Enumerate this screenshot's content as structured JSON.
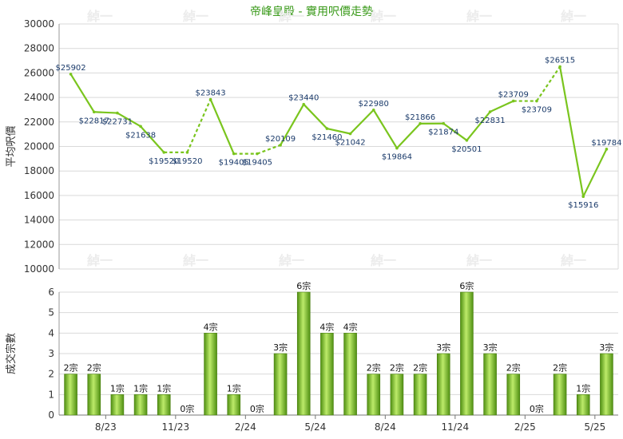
{
  "page": {
    "title": "帝峰皇殿 - 實用呎價走勢"
  },
  "colors": {
    "line": "#7ac51e",
    "bar_dark": "#4f8f12",
    "bar_light": "#bdeb6a",
    "label": "#1a3a6a",
    "watermark": "#ececec",
    "grid": "#d9d9d9"
  },
  "chart_data": [
    {
      "type": "line",
      "title": "帝峰皇殿 - 實用呎價走勢",
      "ylabel": "平均呎價",
      "ylim": [
        10000,
        30000
      ],
      "yticks": [
        10000,
        12000,
        14000,
        16000,
        18000,
        20000,
        22000,
        24000,
        26000,
        28000,
        30000
      ],
      "grid": true,
      "series": [
        {
          "values": [
            25902,
            22817,
            22731,
            21638,
            19520,
            19520,
            23843,
            19405,
            19405,
            20109,
            23440,
            21460,
            21042,
            22980,
            19864,
            21866,
            21874,
            20501,
            22831,
            23709,
            23709,
            26515,
            15916,
            19784
          ],
          "labels": [
            "$25902",
            "$22817",
            "$22731",
            "$21638",
            "$19520",
            "$19520",
            "$23843",
            "$19405",
            "$19405",
            "$20109",
            "$23440",
            "$21460",
            "$21042",
            "$22980",
            "$19864",
            "$21866",
            "$21874",
            "$20501",
            "$22831",
            "$23709",
            "$23709",
            "$26515",
            "$15916",
            "$19784"
          ],
          "interpolated": [
            false,
            false,
            false,
            false,
            false,
            true,
            false,
            false,
            true,
            false,
            false,
            false,
            false,
            false,
            false,
            false,
            false,
            false,
            false,
            false,
            true,
            false,
            false,
            false
          ]
        }
      ]
    },
    {
      "type": "bar",
      "ylabel": "成交宗數",
      "ylim": [
        0,
        6
      ],
      "yticks": [
        0,
        1,
        2,
        3,
        4,
        5,
        6
      ],
      "grid": true,
      "xticks": [
        {
          "index": 2,
          "label": "8/23"
        },
        {
          "index": 5,
          "label": "11/23"
        },
        {
          "index": 8,
          "label": "2/24"
        },
        {
          "index": 11,
          "label": "5/24"
        },
        {
          "index": 14,
          "label": "8/24"
        },
        {
          "index": 17,
          "label": "11/24"
        },
        {
          "index": 20,
          "label": "2/25"
        },
        {
          "index": 23,
          "label": "5/25"
        }
      ],
      "values": [
        2,
        2,
        1,
        1,
        1,
        0,
        4,
        1,
        0,
        3,
        6,
        4,
        4,
        2,
        2,
        2,
        3,
        6,
        3,
        2,
        0,
        2,
        1,
        3
      ],
      "labels": [
        "2宗",
        "2宗",
        "1宗",
        "1宗",
        "1宗",
        "0宗",
        "4宗",
        "1宗",
        "0宗",
        "3宗",
        "6宗",
        "4宗",
        "4宗",
        "2宗",
        "2宗",
        "2宗",
        "3宗",
        "6宗",
        "3宗",
        "2宗",
        "0宗",
        "2宗",
        "1宗",
        "3宗"
      ]
    }
  ],
  "watermark": {
    "text": "綽一"
  }
}
